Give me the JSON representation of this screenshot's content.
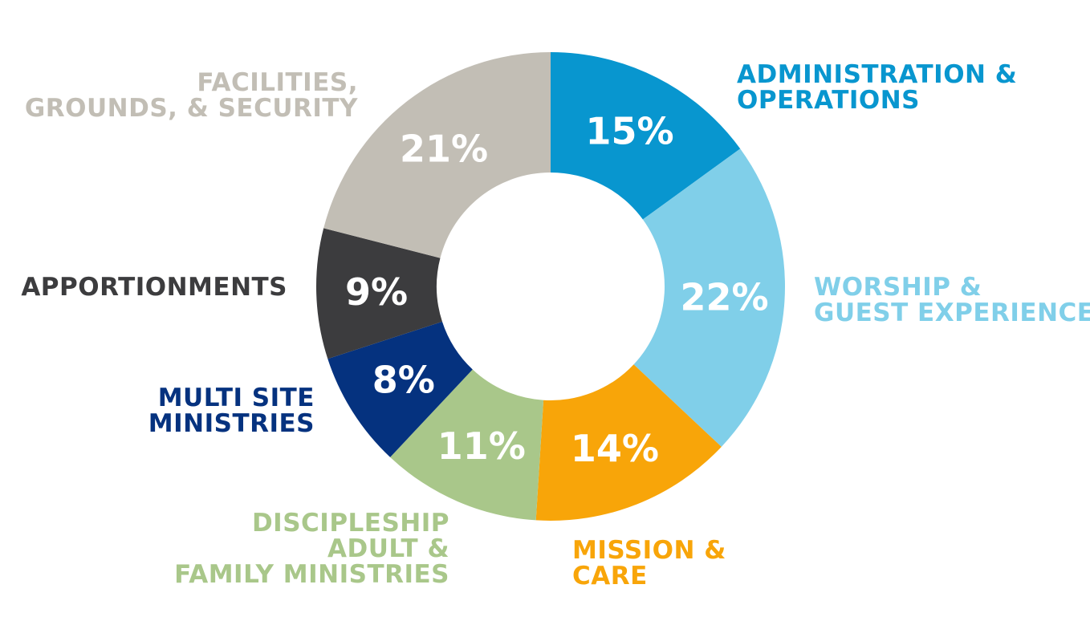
{
  "chart_data": {
    "type": "pie",
    "title": "",
    "slices": [
      {
        "label_lines": [
          "ADMINISTRATION &",
          "OPERATIONS"
        ],
        "value": 15,
        "value_label": "15%",
        "color": "#0896cf"
      },
      {
        "label_lines": [
          "WORSHIP &",
          "GUEST EXPERIENCE"
        ],
        "value": 22,
        "value_label": "22%",
        "color": "#80cfe9"
      },
      {
        "label_lines": [
          "MISSION &",
          "CARE"
        ],
        "value": 14,
        "value_label": "14%",
        "color": "#f8a509"
      },
      {
        "label_lines": [
          "DISCIPLESHIP",
          "ADULT &",
          "FAMILY MINISTRIES"
        ],
        "value": 11,
        "value_label": "11%",
        "color": "#a9c78a"
      },
      {
        "label_lines": [
          "MULTI SITE",
          "MINISTRIES"
        ],
        "value": 8,
        "value_label": "8%",
        "color": "#05327f"
      },
      {
        "label_lines": [
          "APPORTIONMENTS"
        ],
        "value": 9,
        "value_label": "9%",
        "color": "#3c3c3e"
      },
      {
        "label_lines": [
          "FACILITIES,",
          "GROUNDS, & SECURITY"
        ],
        "value": 21,
        "value_label": "21%",
        "color": "#c2beb5"
      }
    ],
    "value_label_color": "#ffffff"
  }
}
